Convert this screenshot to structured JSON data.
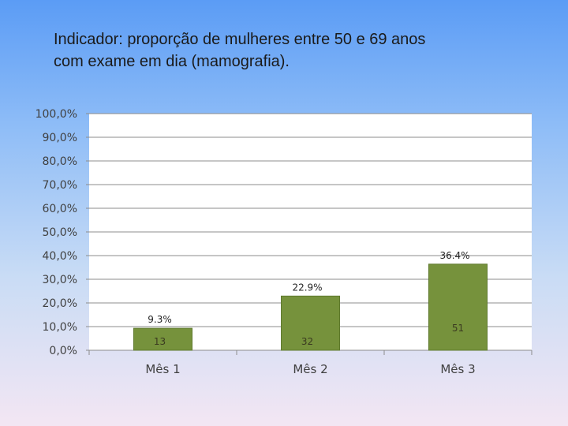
{
  "slide": {
    "title_line1": "Indicador: proporção de mulheres entre 50 e 69 anos",
    "title_line2": "com exame em dia (mamografia)."
  },
  "chart_data": {
    "type": "bar",
    "categories": [
      "Mês 1",
      "Mês 2",
      "Mês 3"
    ],
    "values": [
      9.3,
      22.9,
      36.4
    ],
    "value_labels": [
      "9.3%",
      "22.9%",
      "36.4%"
    ],
    "inner_labels": [
      "13",
      "32",
      "51"
    ],
    "title": "",
    "xlabel": "",
    "ylabel": "",
    "ylim": [
      0,
      100
    ],
    "yticks": [
      0,
      10,
      20,
      30,
      40,
      50,
      60,
      70,
      80,
      90,
      100
    ],
    "ytick_labels": [
      "0,0%",
      "10,0%",
      "20,0%",
      "30,0%",
      "40,0%",
      "50,0%",
      "60,0%",
      "70,0%",
      "80,0%",
      "90,0%",
      "100,0%"
    ],
    "grid": true,
    "legend": "none",
    "colors": {
      "bar": "#76923c",
      "bar_stroke": "#5f7a2e",
      "plot_background": "#ffffff",
      "grid": "#8c8c8c",
      "tick_text": "#404040",
      "value_label_text": "#262626",
      "inner_label_text": "#3a3a20"
    }
  }
}
